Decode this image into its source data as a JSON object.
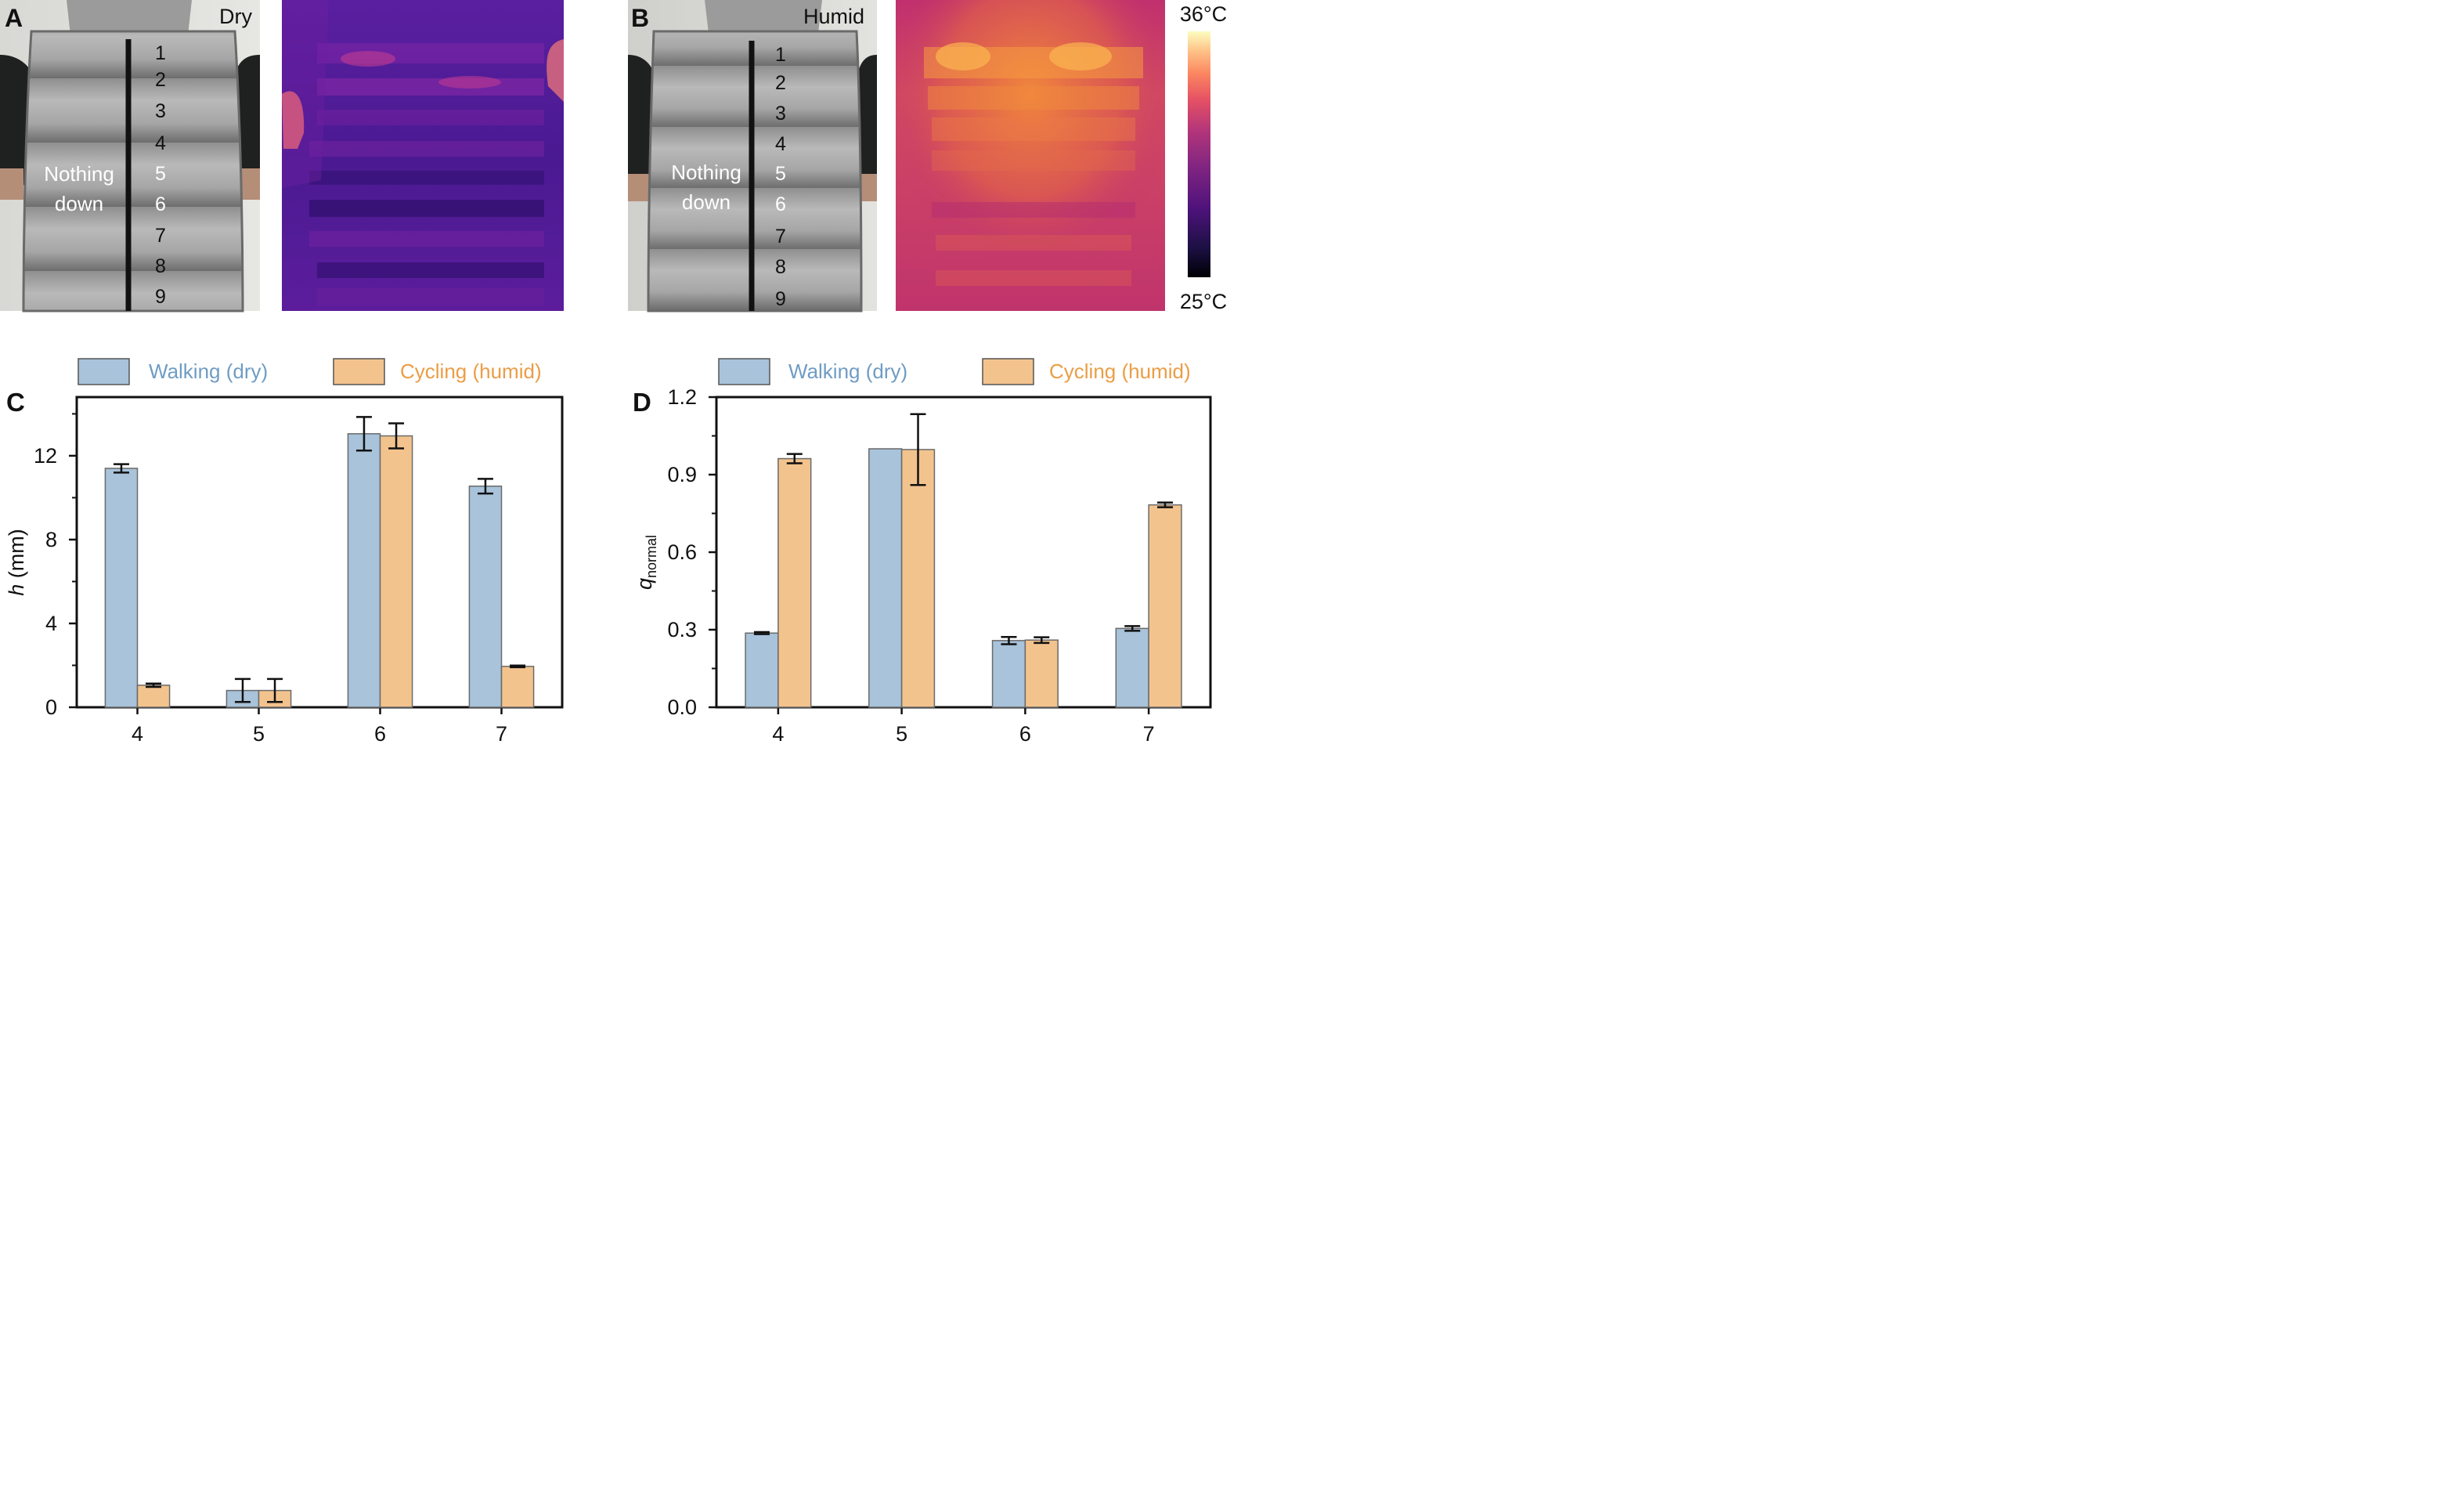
{
  "panels": {
    "A": {
      "letter": "A",
      "condition": "Dry",
      "chamber_numbers": [
        "1",
        "2",
        "3",
        "4",
        "5",
        "6",
        "7",
        "8",
        "9"
      ],
      "note_line1": "Nothing",
      "note_line2": "down"
    },
    "B": {
      "letter": "B",
      "condition": "Humid",
      "chamber_numbers": [
        "1",
        "2",
        "3",
        "4",
        "5",
        "6",
        "7",
        "8",
        "9"
      ],
      "note_line1": "Nothing",
      "note_line2": "down"
    }
  },
  "colorbar": {
    "max_label": "36°C",
    "min_label": "25°C"
  },
  "colors": {
    "walking": "#a8c3da",
    "cycling": "#f3c38e",
    "walking_text": "#6f9cc4",
    "cycling_text": "#eb9d46"
  },
  "chart_data": [
    {
      "panel": "C",
      "type": "bar",
      "title": "",
      "xlabel": "",
      "ylabel_italic": "h",
      "ylabel_rest": " (mm)",
      "categories": [
        "4",
        "5",
        "6",
        "7"
      ],
      "ylim": [
        0,
        14.8
      ],
      "yticks": [
        0,
        4,
        8,
        12
      ],
      "ytick_labels": [
        "0",
        "4",
        "8",
        "12"
      ],
      "minor_yticks": [
        2,
        6,
        10,
        14
      ],
      "series": [
        {
          "name": "Walking (dry)",
          "values": [
            11.4,
            0.8,
            13.05,
            10.55
          ],
          "errors": [
            0.2,
            0.55,
            0.8,
            0.35
          ]
        },
        {
          "name": "Cycling (humid)",
          "values": [
            1.05,
            0.8,
            12.95,
            1.95
          ],
          "errors": [
            0.08,
            0.55,
            0.6,
            0.04
          ]
        }
      ],
      "legend": "top"
    },
    {
      "panel": "D",
      "type": "bar",
      "title": "",
      "xlabel": "",
      "ylabel_italic": "q",
      "ylabel_sub": "normal",
      "categories": [
        "4",
        "5",
        "6",
        "7"
      ],
      "ylim": [
        0,
        1.2
      ],
      "yticks": [
        0,
        0.3,
        0.6,
        0.9,
        1.2
      ],
      "ytick_labels": [
        "0.0",
        "0.3",
        "0.6",
        "0.9",
        "1.2"
      ],
      "minor_yticks": [
        0.15,
        0.45,
        0.75,
        1.05
      ],
      "series": [
        {
          "name": "Walking (dry)",
          "values": [
            0.287,
            1.0,
            0.258,
            0.305
          ],
          "errors": [
            0.004,
            0,
            0.014,
            0.009
          ]
        },
        {
          "name": "Cycling (humid)",
          "values": [
            0.962,
            0.997,
            0.26,
            0.783
          ],
          "errors": [
            0.018,
            0.137,
            0.011,
            0.009
          ]
        }
      ],
      "legend": "top"
    }
  ]
}
